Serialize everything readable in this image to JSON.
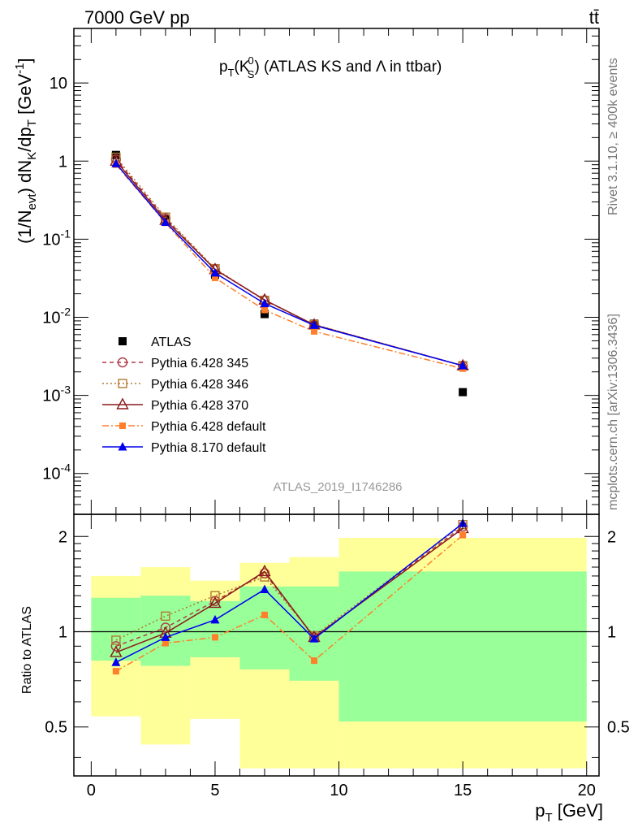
{
  "header": {
    "left": "7000 GeV pp",
    "right": "tt̄"
  },
  "title": {
    "prefix": "p",
    "prefix_sub": "T",
    "open": "(K",
    "sub": "S",
    "sup": "0",
    "rest": ") (ATLAS KS and Λ in ttbar)"
  },
  "ylabel_top": {
    "a": "(1/N",
    "a_sub": "evt",
    "b": ") dN",
    "b_sub": "K",
    "c": "/dp",
    "c_sub": "T",
    "d": " [GeV",
    "d_sup": "-1",
    "e": "]"
  },
  "ylabel_bottom": "Ratio to ATLAS",
  "xlabel": {
    "main": "p",
    "sub": "T",
    "rest": " [GeV]"
  },
  "side_text": {
    "top": "Rivet 3.1.10, ≥ 400k events",
    "bottom": "mcplots.cern.ch [arXiv:1306.3436]"
  },
  "analysis_id": "ATLAS_2019_I1746286",
  "x_ticks": [
    "0",
    "5",
    "10",
    "15",
    "20"
  ],
  "y_ticks_top": [
    {
      "base": "10",
      "exp": "-4",
      "v": 0.0001
    },
    {
      "base": "10",
      "exp": "-3",
      "v": 0.001
    },
    {
      "base": "10",
      "exp": "-2",
      "v": 0.01
    },
    {
      "base": "10",
      "exp": "-1",
      "v": 0.1
    },
    {
      "base": "1",
      "exp": "",
      "v": 1
    },
    {
      "base": "10",
      "exp": "",
      "v": 10
    }
  ],
  "y_ticks_ratio": [
    "0.5",
    "1",
    "2"
  ],
  "legend": [
    "ATLAS",
    "Pythia 6.428 345",
    "Pythia 6.428 346",
    "Pythia 6.428 370",
    "Pythia 6.428 default",
    "Pythia 8.170 default"
  ],
  "colors": {
    "atlas": "#000000",
    "p345": "#b03a48",
    "p346": "#b07a30",
    "p370": "#8b1a1a",
    "p6def": "#ff7f2a",
    "p8def": "#0000ee",
    "band_inner": "#99ff99",
    "band_outer": "#ffff99"
  },
  "chart_data": [
    {
      "type": "scatter",
      "title": "pT(K0S) (ATLAS KS and Λ in ttbar)",
      "xlabel": "pT [GeV]",
      "ylabel": "(1/Nevt) dNK/dpT [GeV^-1]",
      "xlim": [
        -0.7,
        20.5
      ],
      "ylim": [
        3e-05,
        50
      ],
      "yscale": "log",
      "x": [
        1,
        3,
        5,
        7,
        9,
        15
      ],
      "series": [
        {
          "name": "ATLAS",
          "values": [
            1.2,
            0.18,
            0.035,
            0.011,
            0.0083,
            0.0011
          ]
        },
        {
          "name": "Pythia 6.428 345",
          "values": [
            1.05,
            0.185,
            0.041,
            0.0165,
            0.008,
            0.0024
          ]
        },
        {
          "name": "Pythia 6.428 346",
          "values": [
            1.12,
            0.192,
            0.042,
            0.0165,
            0.0081,
            0.0024
          ]
        },
        {
          "name": "Pythia 6.428 370",
          "values": [
            1.0,
            0.175,
            0.041,
            0.0167,
            0.008,
            0.0024
          ]
        },
        {
          "name": "Pythia 6.428 default",
          "values": [
            0.9,
            0.162,
            0.032,
            0.0124,
            0.0066,
            0.0022
          ]
        },
        {
          "name": "Pythia 8.170 default",
          "values": [
            0.93,
            0.165,
            0.037,
            0.015,
            0.0079,
            0.0024
          ]
        }
      ]
    },
    {
      "type": "line",
      "ylabel": "Ratio to ATLAS",
      "xlabel": "pT [GeV]",
      "xlim": [
        -0.7,
        20.5
      ],
      "ylim": [
        0.35,
        2.35
      ],
      "yscale": "log",
      "x": [
        1,
        3,
        5,
        7,
        9,
        15
      ],
      "series": [
        {
          "name": "Pythia 6.428 345",
          "values": [
            0.9,
            1.03,
            1.25,
            1.53,
            0.96,
            2.15
          ]
        },
        {
          "name": "Pythia 6.428 346",
          "values": [
            0.94,
            1.12,
            1.3,
            1.49,
            0.97,
            2.18
          ]
        },
        {
          "name": "Pythia 6.428 370",
          "values": [
            0.86,
            0.99,
            1.23,
            1.55,
            0.96,
            2.12
          ]
        },
        {
          "name": "Pythia 6.428 default",
          "values": [
            0.75,
            0.92,
            0.96,
            1.13,
            0.81,
            2.02
          ]
        },
        {
          "name": "Pythia 8.170 default",
          "values": [
            0.8,
            0.96,
            1.09,
            1.36,
            0.95,
            2.2
          ]
        }
      ],
      "error_bands": [
        {
          "x_range": [
            0,
            2
          ],
          "inner": [
            0.81,
            1.28
          ],
          "outer": [
            0.54,
            1.5
          ]
        },
        {
          "x_range": [
            2,
            4
          ],
          "inner": [
            0.78,
            1.3
          ],
          "outer": [
            0.44,
            1.6
          ]
        },
        {
          "x_range": [
            4,
            6
          ],
          "inner": [
            0.83,
            1.25
          ],
          "outer": [
            0.53,
            1.45
          ]
        },
        {
          "x_range": [
            6,
            8
          ],
          "inner": [
            0.76,
            1.39
          ],
          "outer": [
            0.37,
            1.65
          ]
        },
        {
          "x_range": [
            8,
            10
          ],
          "inner": [
            0.7,
            1.39
          ],
          "outer": [
            0.37,
            1.72
          ]
        },
        {
          "x_range": [
            10,
            20
          ],
          "inner": [
            0.52,
            1.55
          ],
          "outer": [
            0.37,
            1.98
          ]
        }
      ]
    }
  ]
}
